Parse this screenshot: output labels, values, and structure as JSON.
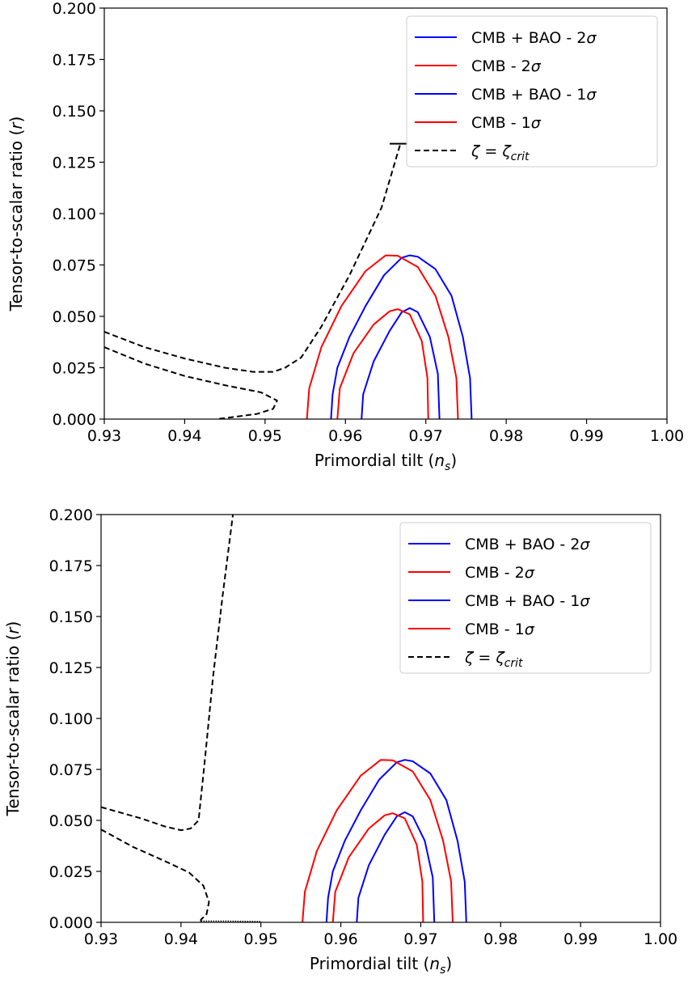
{
  "chart_data": [
    {
      "type": "line",
      "xlabel": "Primordial tilt",
      "xlabel_symbol": "n",
      "xlabel_sub": "s",
      "ylabel": "Tensor-to-scalar ratio",
      "ylabel_symbol": "r",
      "xlim": [
        0.93,
        1.0
      ],
      "ylim": [
        0.0,
        0.2
      ],
      "xticks": [
        0.93,
        0.94,
        0.95,
        0.96,
        0.97,
        0.98,
        0.99,
        1.0
      ],
      "xtick_labels": [
        "0.93",
        "0.94",
        "0.95",
        "0.96",
        "0.97",
        "0.98",
        "0.99",
        "1.00"
      ],
      "yticks": [
        0.0,
        0.025,
        0.05,
        0.075,
        0.1,
        0.125,
        0.15,
        0.175,
        0.2
      ],
      "ytick_labels": [
        "0.000",
        "0.025",
        "0.050",
        "0.075",
        "0.100",
        "0.125",
        "0.150",
        "0.175",
        "0.200"
      ],
      "grid": false,
      "legend_position": "top-right",
      "legend": [
        {
          "prefix": "CMB + BAO - 2",
          "symbol": "σ",
          "color": "#0000ff",
          "style": "solid"
        },
        {
          "prefix": "CMB - 2",
          "symbol": "σ",
          "color": "#ff0000",
          "style": "solid"
        },
        {
          "prefix": "CMB + BAO - 1",
          "symbol": "σ",
          "color": "#0000ff",
          "style": "solid"
        },
        {
          "prefix": "CMB - 1",
          "symbol": "σ",
          "color": "#ff0000",
          "style": "solid"
        },
        {
          "prefix": "ζ = ζ",
          "sub": "crit",
          "color": "#000000",
          "style": "dashed"
        }
      ],
      "series": [
        {
          "color": "#0000ff",
          "style": "solid",
          "closed": true,
          "points": [
            [
              0.9582,
              0
            ],
            [
              0.9584,
              0.012
            ],
            [
              0.959,
              0.025
            ],
            [
              0.9605,
              0.04
            ],
            [
              0.9625,
              0.055
            ],
            [
              0.9648,
              0.07
            ],
            [
              0.967,
              0.0785
            ],
            [
              0.968,
              0.0797
            ],
            [
              0.969,
              0.079
            ],
            [
              0.9712,
              0.073
            ],
            [
              0.9732,
              0.06
            ],
            [
              0.9746,
              0.04
            ],
            [
              0.9755,
              0.02
            ],
            [
              0.9757,
              0
            ]
          ]
        },
        {
          "color": "#ff0000",
          "style": "solid",
          "closed": true,
          "points": [
            [
              0.9552,
              0
            ],
            [
              0.9555,
              0.015
            ],
            [
              0.957,
              0.035
            ],
            [
              0.9595,
              0.055
            ],
            [
              0.9625,
              0.072
            ],
            [
              0.965,
              0.0797
            ],
            [
              0.9665,
              0.0795
            ],
            [
              0.969,
              0.074
            ],
            [
              0.9712,
              0.06
            ],
            [
              0.9728,
              0.04
            ],
            [
              0.9738,
              0.02
            ],
            [
              0.974,
              0
            ]
          ]
        },
        {
          "color": "#0000ff",
          "style": "solid",
          "closed": true,
          "points": [
            [
              0.962,
              0
            ],
            [
              0.9622,
              0.012
            ],
            [
              0.9635,
              0.028
            ],
            [
              0.9655,
              0.043
            ],
            [
              0.967,
              0.052
            ],
            [
              0.968,
              0.054
            ],
            [
              0.969,
              0.052
            ],
            [
              0.9705,
              0.04
            ],
            [
              0.9715,
              0.022
            ],
            [
              0.9717,
              0
            ]
          ]
        },
        {
          "color": "#ff0000",
          "style": "solid",
          "closed": true,
          "points": [
            [
              0.959,
              0
            ],
            [
              0.9593,
              0.015
            ],
            [
              0.961,
              0.032
            ],
            [
              0.9635,
              0.046
            ],
            [
              0.9655,
              0.0525
            ],
            [
              0.9665,
              0.0535
            ],
            [
              0.968,
              0.051
            ],
            [
              0.9695,
              0.038
            ],
            [
              0.9702,
              0.02
            ],
            [
              0.9703,
              0
            ]
          ]
        },
        {
          "color": "#000000",
          "style": "dashed",
          "closed": false,
          "points": [
            [
              0.93,
              0.0425
            ],
            [
              0.935,
              0.035
            ],
            [
              0.94,
              0.0295
            ],
            [
              0.945,
              0.025
            ],
            [
              0.9485,
              0.023
            ],
            [
              0.951,
              0.023
            ],
            [
              0.9525,
              0.025
            ],
            [
              0.9545,
              0.03
            ],
            [
              0.957,
              0.045
            ],
            [
              0.9605,
              0.07
            ],
            [
              0.9645,
              0.103
            ],
            [
              0.9668,
              0.1335
            ]
          ]
        },
        {
          "color": "#000000",
          "style": "dashed",
          "closed": false,
          "points": [
            [
              0.93,
              0.035
            ],
            [
              0.935,
              0.027
            ],
            [
              0.94,
              0.021
            ],
            [
              0.945,
              0.0165
            ],
            [
              0.9495,
              0.013
            ],
            [
              0.9515,
              0.009
            ],
            [
              0.951,
              0.005
            ],
            [
              0.949,
              0.0025
            ],
            [
              0.946,
              0.001
            ],
            [
              0.944,
              0.0
            ]
          ]
        },
        {
          "color": "#000000",
          "style": "solid",
          "closed": false,
          "points": [
            [
              0.9655,
              0.134
            ],
            [
              0.9678,
              0.134
            ]
          ]
        }
      ]
    },
    {
      "type": "line",
      "xlabel": "Primordial tilt",
      "xlabel_symbol": "n",
      "xlabel_sub": "s",
      "ylabel": "Tensor-to-scalar ratio",
      "ylabel_symbol": "r",
      "xlim": [
        0.93,
        1.0
      ],
      "ylim": [
        0.0,
        0.2
      ],
      "xticks": [
        0.93,
        0.94,
        0.95,
        0.96,
        0.97,
        0.98,
        0.99,
        1.0
      ],
      "xtick_labels": [
        "0.93",
        "0.94",
        "0.95",
        "0.96",
        "0.97",
        "0.98",
        "0.99",
        "1.00"
      ],
      "yticks": [
        0.0,
        0.025,
        0.05,
        0.075,
        0.1,
        0.125,
        0.15,
        0.175,
        0.2
      ],
      "ytick_labels": [
        "0.000",
        "0.025",
        "0.050",
        "0.075",
        "0.100",
        "0.125",
        "0.150",
        "0.175",
        "0.200"
      ],
      "grid": false,
      "legend_position": "top-right",
      "legend": [
        {
          "prefix": "CMB + BAO - 2",
          "symbol": "σ",
          "color": "#0000ff",
          "style": "solid"
        },
        {
          "prefix": "CMB - 2",
          "symbol": "σ",
          "color": "#ff0000",
          "style": "solid"
        },
        {
          "prefix": "CMB + BAO - 1",
          "symbol": "σ",
          "color": "#0000ff",
          "style": "solid"
        },
        {
          "prefix": "CMB - 1",
          "symbol": "σ",
          "color": "#ff0000",
          "style": "solid"
        },
        {
          "prefix": "ζ = ζ",
          "sub": "crit",
          "color": "#000000",
          "style": "dashed"
        }
      ],
      "series": [
        {
          "color": "#0000ff",
          "style": "solid",
          "closed": true,
          "points": [
            [
              0.9582,
              0
            ],
            [
              0.9584,
              0.012
            ],
            [
              0.959,
              0.025
            ],
            [
              0.9605,
              0.04
            ],
            [
              0.9625,
              0.055
            ],
            [
              0.9648,
              0.07
            ],
            [
              0.967,
              0.0785
            ],
            [
              0.968,
              0.0797
            ],
            [
              0.969,
              0.079
            ],
            [
              0.9712,
              0.073
            ],
            [
              0.9732,
              0.06
            ],
            [
              0.9746,
              0.04
            ],
            [
              0.9755,
              0.02
            ],
            [
              0.9757,
              0
            ]
          ]
        },
        {
          "color": "#ff0000",
          "style": "solid",
          "closed": true,
          "points": [
            [
              0.9552,
              0
            ],
            [
              0.9555,
              0.015
            ],
            [
              0.957,
              0.035
            ],
            [
              0.9595,
              0.055
            ],
            [
              0.9625,
              0.072
            ],
            [
              0.965,
              0.0797
            ],
            [
              0.9665,
              0.0795
            ],
            [
              0.969,
              0.074
            ],
            [
              0.9712,
              0.06
            ],
            [
              0.9728,
              0.04
            ],
            [
              0.9738,
              0.02
            ],
            [
              0.974,
              0
            ]
          ]
        },
        {
          "color": "#0000ff",
          "style": "solid",
          "closed": true,
          "points": [
            [
              0.962,
              0
            ],
            [
              0.9622,
              0.012
            ],
            [
              0.9635,
              0.028
            ],
            [
              0.9655,
              0.043
            ],
            [
              0.967,
              0.052
            ],
            [
              0.968,
              0.054
            ],
            [
              0.969,
              0.052
            ],
            [
              0.9705,
              0.04
            ],
            [
              0.9715,
              0.022
            ],
            [
              0.9717,
              0
            ]
          ]
        },
        {
          "color": "#ff0000",
          "style": "solid",
          "closed": true,
          "points": [
            [
              0.959,
              0
            ],
            [
              0.9593,
              0.015
            ],
            [
              0.961,
              0.032
            ],
            [
              0.9635,
              0.046
            ],
            [
              0.9655,
              0.0525
            ],
            [
              0.9665,
              0.0535
            ],
            [
              0.968,
              0.051
            ],
            [
              0.9695,
              0.038
            ],
            [
              0.9702,
              0.02
            ],
            [
              0.9703,
              0
            ]
          ]
        },
        {
          "color": "#000000",
          "style": "dashed",
          "closed": false,
          "points": [
            [
              0.93,
              0.0565
            ],
            [
              0.935,
              0.051
            ],
            [
              0.938,
              0.047
            ],
            [
              0.94,
              0.0452
            ],
            [
              0.9412,
              0.046
            ],
            [
              0.9422,
              0.05
            ],
            [
              0.943,
              0.08
            ],
            [
              0.944,
              0.12
            ],
            [
              0.9452,
              0.16
            ],
            [
              0.9465,
              0.2
            ]
          ]
        },
        {
          "color": "#000000",
          "style": "dashed",
          "closed": false,
          "points": [
            [
              0.93,
              0.0455
            ],
            [
              0.934,
              0.037
            ],
            [
              0.938,
              0.03
            ],
            [
              0.941,
              0.0245
            ],
            [
              0.9428,
              0.018
            ],
            [
              0.9435,
              0.01
            ],
            [
              0.9432,
              0.004
            ],
            [
              0.9425,
              0.0013
            ],
            [
              0.9425,
              0.0
            ]
          ]
        },
        {
          "color": "#000000",
          "style": "dotted",
          "closed": false,
          "points": [
            [
              0.9425,
              0.0006
            ],
            [
              0.946,
              0.0006
            ],
            [
              0.95,
              0.0004
            ]
          ]
        }
      ]
    }
  ]
}
